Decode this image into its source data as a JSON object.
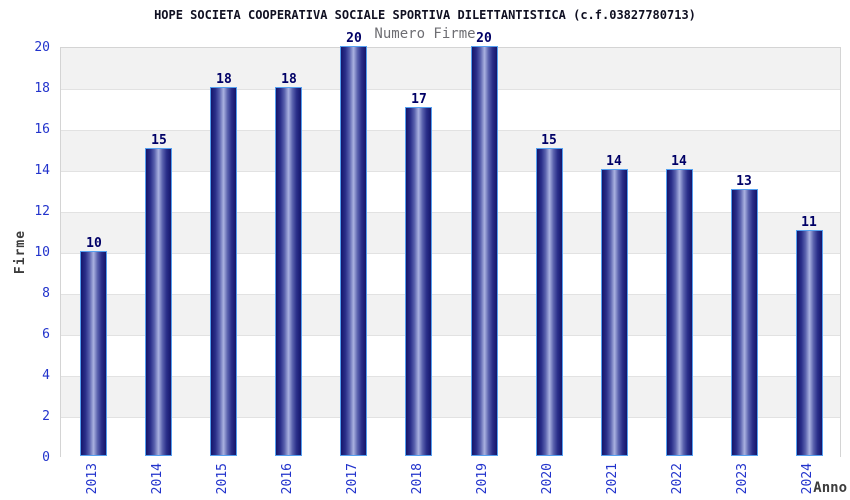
{
  "chart_data": {
    "type": "bar",
    "title": "HOPE SOCIETA COOPERATIVA SOCIALE SPORTIVA DILETTANTISTICA (c.f.03827780713)",
    "subtitle": "Numero Firme",
    "xlabel": "Anno",
    "ylabel": "Firme",
    "categories": [
      "2013",
      "2014",
      "2015",
      "2016",
      "2017",
      "2018",
      "2019",
      "2020",
      "2021",
      "2022",
      "2023",
      "2024"
    ],
    "values": [
      10,
      15,
      18,
      18,
      20,
      17,
      20,
      15,
      14,
      14,
      13,
      11
    ],
    "ylim": [
      0,
      20
    ],
    "ytick_step": 2,
    "grid": "horizontal-bands",
    "legend": "none",
    "colors": {
      "bar_edge": "#55a0f0",
      "bar_dark": "#15156b",
      "bar_light": "#aab2e0",
      "value_label": "#000066",
      "tick_label": "#2233cc",
      "title": "#101022",
      "subtitle": "#6e6e73",
      "axis_label": "#3d3d3d",
      "band_gray": "#f2f2f2",
      "gridline": "#e2e2e2",
      "plot_border": "#d4d4d4"
    }
  }
}
